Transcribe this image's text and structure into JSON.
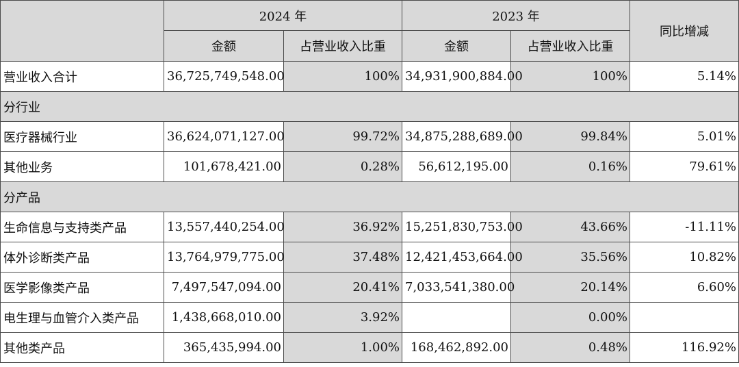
{
  "header": {
    "year_2024": "2024 年",
    "year_2023": "2023 年",
    "yoy": "同比增减",
    "amount": "金额",
    "share": "占营业收入比重"
  },
  "rows": [
    {
      "type": "data",
      "label": "营业收入合计",
      "a2024": "36,725,749,548.00",
      "p2024": "100%",
      "a2023": "34,931,900,884.00",
      "p2023": "100%",
      "yoy": "5.14%"
    },
    {
      "type": "section",
      "label": "分行业"
    },
    {
      "type": "data",
      "label": "医疗器械行业",
      "a2024": "36,624,071,127.00",
      "p2024": "99.72%",
      "a2023": "34,875,288,689.00",
      "p2023": "99.84%",
      "yoy": "5.01%"
    },
    {
      "type": "data",
      "label": "其他业务",
      "a2024": "101,678,421.00",
      "p2024": "0.28%",
      "a2023": "56,612,195.00",
      "p2023": "0.16%",
      "yoy": "79.61%"
    },
    {
      "type": "section",
      "label": "分产品"
    },
    {
      "type": "data",
      "label": "生命信息与支持类产品",
      "a2024": "13,557,440,254.00",
      "p2024": "36.92%",
      "a2023": "15,251,830,753.00",
      "p2023": "43.66%",
      "yoy": "-11.11%"
    },
    {
      "type": "data",
      "label": "体外诊断类产品",
      "a2024": "13,764,979,775.00",
      "p2024": "37.48%",
      "a2023": "12,421,453,664.00",
      "p2023": "35.56%",
      "yoy": "10.82%"
    },
    {
      "type": "data",
      "label": "医学影像类产品",
      "a2024": "7,497,547,094.00",
      "p2024": "20.41%",
      "a2023": "7,033,541,380.00",
      "p2023": "20.14%",
      "yoy": "6.60%"
    },
    {
      "type": "data",
      "label": "电生理与血管介入类产品",
      "a2024": "1,438,668,010.00",
      "p2024": "3.92%",
      "a2023": "",
      "p2023": "0.00%",
      "yoy": ""
    },
    {
      "type": "data",
      "label": "其他类产品",
      "a2024": "365,435,994.00",
      "p2024": "1.00%",
      "a2023": "168,462,892.00",
      "p2023": "0.48%",
      "yoy": "116.92%"
    }
  ]
}
